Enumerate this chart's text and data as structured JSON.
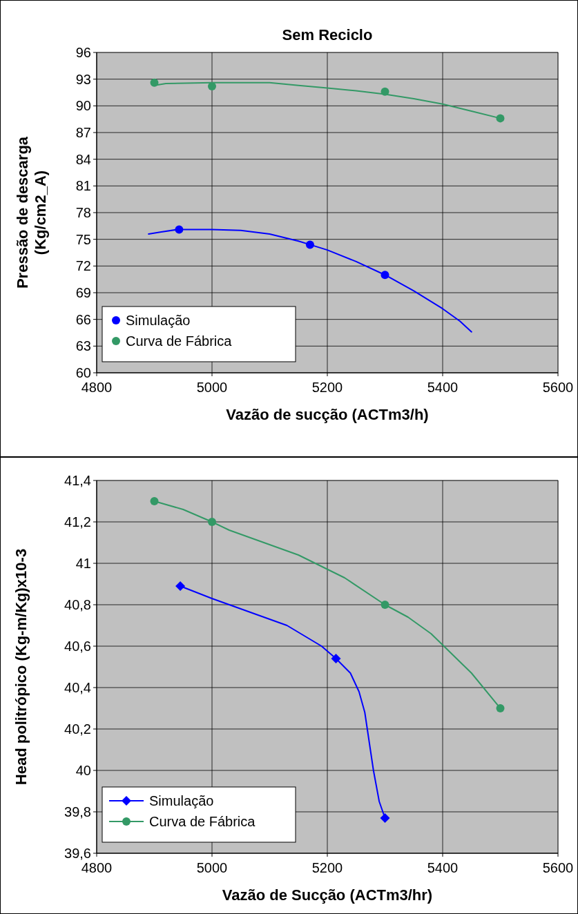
{
  "chart_data": [
    {
      "type": "line",
      "title": "Sem Reciclo",
      "xlabel": "Vazão de sucção (ACTm3/h)",
      "ylabel": "Pressão de descarga\n(Kg/cm2_A)",
      "xlim": [
        4800,
        5600
      ],
      "xticks": [
        4800,
        5000,
        5200,
        5400,
        5600
      ],
      "ylim": [
        60,
        96
      ],
      "yticks": [
        60,
        63,
        66,
        69,
        72,
        75,
        78,
        81,
        84,
        87,
        90,
        93,
        96
      ],
      "grid": true,
      "legend": "bottom left",
      "series": [
        {
          "type": "line",
          "color": "#339966",
          "x": [
            4900,
            4920,
            5000,
            5100,
            5150,
            5200,
            5250,
            5300,
            5350,
            5400,
            5450,
            5500
          ],
          "values": [
            92.3,
            92.5,
            92.6,
            92.6,
            92.3,
            92.0,
            91.7,
            91.3,
            90.8,
            90.2,
            89.4,
            88.6
          ]
        },
        {
          "type": "line",
          "color": "#0000ff",
          "x": [
            4890,
            4910,
            4940,
            5000,
            5050,
            5100,
            5150,
            5170,
            5200,
            5250,
            5300,
            5350,
            5400,
            5430,
            5450
          ],
          "values": [
            75.6,
            75.8,
            76.1,
            76.1,
            76.0,
            75.6,
            74.8,
            74.4,
            73.8,
            72.5,
            71.0,
            69.2,
            67.2,
            65.8,
            64.6
          ]
        },
        {
          "type": "scatter",
          "name": "Simulação",
          "color": "#0000ff",
          "marker": "circle",
          "x": [
            4943,
            5170,
            5300
          ],
          "values": [
            76.1,
            74.4,
            71.0
          ]
        },
        {
          "type": "scatter",
          "name": "Curva de Fábrica",
          "color": "#339966",
          "marker": "circle",
          "x": [
            4900,
            5000,
            5300,
            5500
          ],
          "values": [
            92.6,
            92.2,
            91.6,
            88.6
          ]
        }
      ]
    },
    {
      "type": "line",
      "xlabel": "Vazão de Sucção  (ACTm3/hr)",
      "ylabel": "Head politrópico  (Kg-m/Kg)x10-3",
      "xlim": [
        4800,
        5600
      ],
      "xticks": [
        4800,
        5000,
        5200,
        5400,
        5600
      ],
      "ylim": [
        39.6,
        41.4
      ],
      "yticks": [
        {
          "value": 39.6,
          "label": "39,6"
        },
        {
          "value": 39.8,
          "label": "39,8"
        },
        {
          "value": 40,
          "label": "40"
        },
        {
          "value": 40.2,
          "label": "40,2"
        },
        {
          "value": 40.4,
          "label": "40,4"
        },
        {
          "value": 40.6,
          "label": "40,6"
        },
        {
          "value": 40.8,
          "label": "40,8"
        },
        {
          "value": 41,
          "label": "41"
        },
        {
          "value": 41.2,
          "label": "41,2"
        },
        {
          "value": 41.4,
          "label": "41,4"
        }
      ],
      "grid": true,
      "legend": "bottom left",
      "series": [
        {
          "type": "line",
          "color": "#0000ff",
          "x": [
            4945,
            5000,
            5130,
            5190,
            5215,
            5240,
            5255,
            5265,
            5280,
            5290,
            5300
          ],
          "values": [
            40.89,
            40.83,
            40.7,
            40.6,
            40.54,
            40.47,
            40.38,
            40.28,
            40.0,
            39.85,
            39.77
          ]
        },
        {
          "type": "line",
          "color": "#339966",
          "x": [
            4900,
            4950,
            5000,
            5030,
            5150,
            5230,
            5300,
            5340,
            5380,
            5450,
            5500
          ],
          "values": [
            41.3,
            41.26,
            41.2,
            41.16,
            41.04,
            40.93,
            40.8,
            40.74,
            40.66,
            40.47,
            40.3
          ]
        },
        {
          "type": "scatter",
          "name": "Simulação",
          "color": "#0000ff",
          "marker": "diamond",
          "x": [
            4945,
            5215,
            5300
          ],
          "values": [
            40.89,
            40.54,
            39.77
          ]
        },
        {
          "type": "scatter",
          "name": "Curva de Fábrica",
          "color": "#339966",
          "marker": "circle",
          "x": [
            4900,
            5000,
            5300,
            5500
          ],
          "values": [
            41.3,
            41.2,
            40.8,
            40.3
          ]
        }
      ]
    }
  ]
}
